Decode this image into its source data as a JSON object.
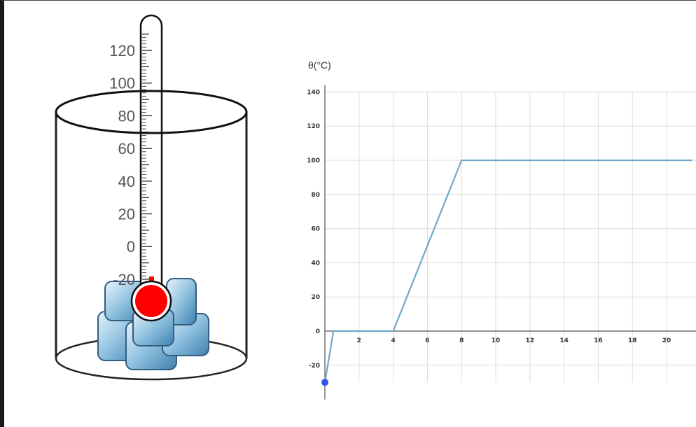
{
  "thermometer": {
    "scale_labels": [
      "120",
      "100",
      "80",
      "60",
      "40",
      "20",
      "0",
      "-20"
    ],
    "bulb_color": "#ff0000"
  },
  "chart_data": {
    "type": "line",
    "ylabel": "θ(°C)",
    "xlabel": "",
    "x_ticks": [
      "2",
      "4",
      "6",
      "8",
      "10",
      "12",
      "14",
      "16",
      "18",
      "20"
    ],
    "y_ticks": [
      "-20",
      "0",
      "20",
      "40",
      "60",
      "80",
      "100",
      "120",
      "140"
    ],
    "xlim": [
      0,
      21.5
    ],
    "ylim": [
      -30,
      140
    ],
    "grid": true,
    "series": [
      {
        "color": "#6fa8c7",
        "x": [
          0,
          0.5,
          4,
          8,
          21.5
        ],
        "y": [
          -30,
          0,
          0,
          100,
          100
        ]
      }
    ],
    "start_point": {
      "x": 0,
      "y": -30,
      "color": "#3355ee"
    }
  }
}
